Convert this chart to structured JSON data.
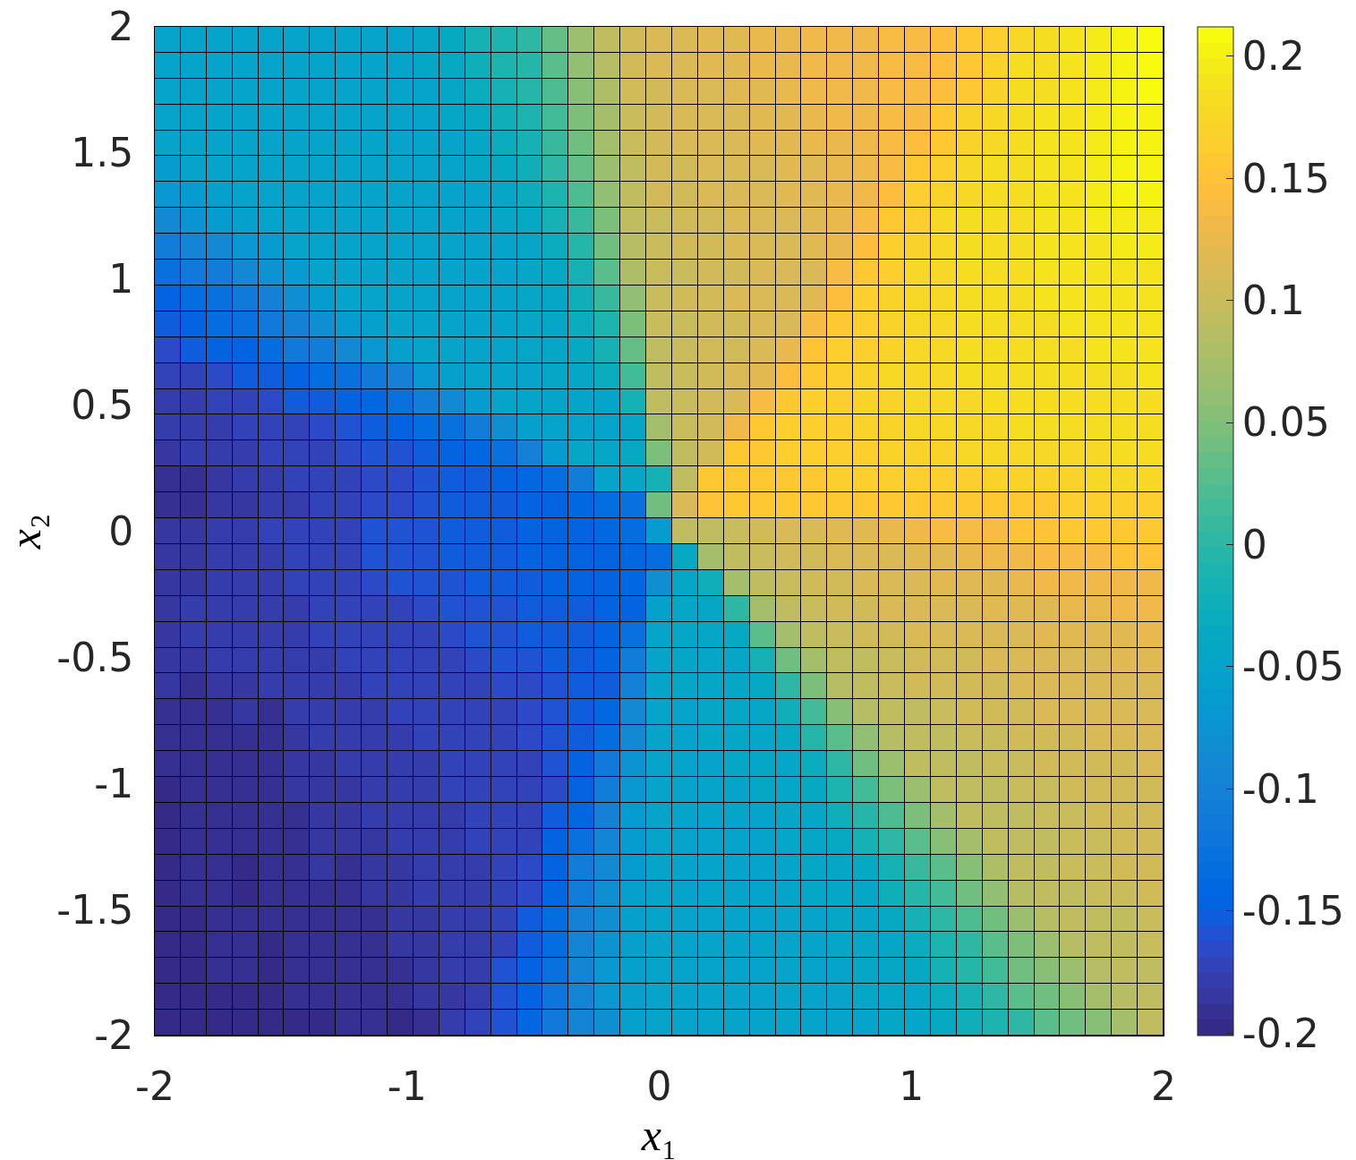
{
  "chart_data": {
    "type": "heatmap",
    "xlabel": "x₁",
    "ylabel": "x₂",
    "xlim": [
      -2,
      2
    ],
    "ylim": [
      -2,
      2
    ],
    "xticks": [
      -2,
      -1,
      0,
      1,
      2
    ],
    "yticks": [
      -2,
      -1.5,
      -1,
      -0.5,
      0,
      0.5,
      1,
      1.5,
      2
    ],
    "clim": [
      -0.201,
      0.212
    ],
    "cticks": [
      -0.2,
      -0.15,
      -0.1,
      -0.05,
      0,
      0.05,
      0.1,
      0.15,
      0.2
    ],
    "cells": [
      [
        -0.05,
        -0.05,
        -0.05,
        -0.05,
        -0.05,
        -0.05,
        -0.05,
        -0.05,
        -0.05,
        -0.05,
        -0.045,
        -0.035,
        -0.015,
        -0.01,
        0.005,
        0.035,
        0.065,
        0.09,
        0.105,
        0.11,
        0.115,
        0.12,
        0.12,
        0.125,
        0.125,
        0.13,
        0.13,
        0.13,
        0.135,
        0.14,
        0.145,
        0.16,
        0.165,
        0.175,
        0.185,
        0.19,
        0.195,
        0.2,
        0.21
      ],
      [
        -0.05,
        -0.05,
        -0.05,
        -0.05,
        -0.05,
        -0.05,
        -0.05,
        -0.05,
        -0.05,
        -0.05,
        -0.045,
        -0.035,
        -0.025,
        -0.01,
        -0.005,
        0.03,
        0.06,
        0.085,
        0.105,
        0.11,
        0.115,
        0.12,
        0.12,
        0.125,
        0.125,
        0.13,
        0.13,
        0.13,
        0.135,
        0.14,
        0.145,
        0.16,
        0.17,
        0.18,
        0.185,
        0.19,
        0.195,
        0.2,
        0.21
      ],
      [
        -0.05,
        -0.05,
        -0.05,
        -0.05,
        -0.05,
        -0.05,
        -0.05,
        -0.05,
        -0.05,
        -0.05,
        -0.05,
        -0.045,
        -0.03,
        -0.015,
        -0.005,
        0.02,
        0.055,
        0.08,
        0.105,
        0.105,
        0.11,
        0.115,
        0.12,
        0.12,
        0.125,
        0.13,
        0.13,
        0.13,
        0.135,
        0.14,
        0.145,
        0.16,
        0.17,
        0.18,
        0.185,
        0.19,
        0.195,
        0.2,
        0.21
      ],
      [
        -0.05,
        -0.05,
        -0.05,
        -0.05,
        -0.05,
        -0.05,
        -0.05,
        -0.05,
        -0.05,
        -0.05,
        -0.05,
        -0.045,
        -0.035,
        -0.025,
        -0.01,
        0.015,
        0.05,
        0.075,
        0.1,
        0.105,
        0.11,
        0.11,
        0.115,
        0.12,
        0.12,
        0.125,
        0.13,
        0.13,
        0.135,
        0.14,
        0.16,
        0.17,
        0.175,
        0.185,
        0.19,
        0.19,
        0.195,
        0.2,
        0.205
      ],
      [
        -0.05,
        -0.05,
        -0.05,
        -0.05,
        -0.05,
        -0.05,
        -0.05,
        -0.05,
        -0.05,
        -0.05,
        -0.05,
        -0.05,
        -0.045,
        -0.03,
        -0.015,
        0.01,
        0.04,
        0.075,
        0.1,
        0.105,
        0.11,
        0.11,
        0.115,
        0.12,
        0.12,
        0.125,
        0.125,
        0.13,
        0.135,
        0.145,
        0.16,
        0.17,
        0.175,
        0.185,
        0.19,
        0.19,
        0.195,
        0.205,
        0.2
      ],
      [
        -0.06,
        -0.05,
        -0.05,
        -0.05,
        -0.05,
        -0.05,
        -0.05,
        -0.05,
        -0.05,
        -0.05,
        -0.05,
        -0.05,
        -0.045,
        -0.035,
        -0.025,
        0.005,
        0.035,
        0.065,
        0.095,
        0.105,
        0.105,
        0.11,
        0.11,
        0.115,
        0.12,
        0.12,
        0.125,
        0.13,
        0.14,
        0.155,
        0.165,
        0.175,
        0.18,
        0.185,
        0.19,
        0.19,
        0.195,
        0.2,
        0.2
      ],
      [
        -0.07,
        -0.06,
        -0.055,
        -0.05,
        -0.05,
        -0.05,
        -0.05,
        -0.05,
        -0.05,
        -0.05,
        -0.05,
        -0.05,
        -0.05,
        -0.045,
        -0.03,
        -0.01,
        0.02,
        0.06,
        0.095,
        0.105,
        0.105,
        0.11,
        0.11,
        0.115,
        0.12,
        0.12,
        0.125,
        0.13,
        0.145,
        0.165,
        0.17,
        0.175,
        0.185,
        0.185,
        0.19,
        0.19,
        0.195,
        0.2,
        0.2
      ],
      [
        -0.09,
        -0.075,
        -0.06,
        -0.055,
        -0.05,
        -0.05,
        -0.05,
        -0.05,
        -0.05,
        -0.05,
        -0.05,
        -0.05,
        -0.05,
        -0.045,
        -0.035,
        -0.015,
        0.01,
        0.05,
        0.095,
        0.1,
        0.105,
        0.105,
        0.11,
        0.11,
        0.115,
        0.12,
        0.125,
        0.14,
        0.16,
        0.165,
        0.175,
        0.18,
        0.185,
        0.185,
        0.19,
        0.19,
        0.195,
        0.195,
        0.195
      ],
      [
        -0.105,
        -0.095,
        -0.09,
        -0.07,
        -0.06,
        -0.05,
        -0.05,
        -0.05,
        -0.05,
        -0.05,
        -0.05,
        -0.05,
        -0.05,
        -0.05,
        -0.045,
        -0.03,
        -0.005,
        0.04,
        0.085,
        0.1,
        0.105,
        0.105,
        0.11,
        0.11,
        0.115,
        0.12,
        0.125,
        0.145,
        0.165,
        0.17,
        0.175,
        0.18,
        0.185,
        0.185,
        0.19,
        0.19,
        0.19,
        0.195,
        0.195
      ],
      [
        -0.125,
        -0.115,
        -0.105,
        -0.09,
        -0.075,
        -0.06,
        -0.05,
        -0.05,
        -0.05,
        -0.05,
        -0.05,
        -0.05,
        -0.05,
        -0.05,
        -0.045,
        -0.035,
        -0.015,
        0.03,
        0.08,
        0.1,
        0.1,
        0.105,
        0.105,
        0.11,
        0.11,
        0.115,
        0.135,
        0.155,
        0.165,
        0.175,
        0.175,
        0.18,
        0.185,
        0.185,
        0.19,
        0.19,
        0.19,
        0.19,
        0.19
      ],
      [
        -0.145,
        -0.135,
        -0.125,
        -0.115,
        -0.1,
        -0.08,
        -0.06,
        -0.05,
        -0.05,
        -0.05,
        -0.05,
        -0.05,
        -0.05,
        -0.05,
        -0.045,
        -0.045,
        -0.025,
        0.01,
        0.06,
        0.1,
        0.105,
        0.105,
        0.11,
        0.11,
        0.115,
        0.12,
        0.145,
        0.165,
        0.17,
        0.175,
        0.175,
        0.18,
        0.185,
        0.185,
        0.19,
        0.19,
        0.19,
        0.19,
        0.19
      ],
      [
        -0.155,
        -0.145,
        -0.135,
        -0.125,
        -0.115,
        -0.1,
        -0.08,
        -0.065,
        -0.055,
        -0.05,
        -0.05,
        -0.05,
        -0.05,
        -0.05,
        -0.045,
        -0.045,
        -0.03,
        -0.01,
        0.05,
        0.1,
        0.1,
        0.105,
        0.105,
        0.11,
        0.11,
        0.135,
        0.16,
        0.165,
        0.17,
        0.175,
        0.175,
        0.18,
        0.185,
        0.185,
        0.185,
        0.19,
        0.19,
        0.19,
        0.19
      ],
      [
        -0.165,
        -0.155,
        -0.145,
        -0.145,
        -0.135,
        -0.115,
        -0.105,
        -0.09,
        -0.07,
        -0.055,
        -0.05,
        -0.05,
        -0.05,
        -0.05,
        -0.045,
        -0.045,
        -0.035,
        -0.015,
        0.035,
        0.095,
        0.1,
        0.105,
        0.105,
        0.11,
        0.125,
        0.15,
        0.165,
        0.165,
        0.17,
        0.175,
        0.175,
        0.18,
        0.185,
        0.185,
        0.185,
        0.185,
        0.19,
        0.19,
        0.19
      ],
      [
        -0.17,
        -0.17,
        -0.165,
        -0.155,
        -0.15,
        -0.145,
        -0.135,
        -0.125,
        -0.115,
        -0.1,
        -0.07,
        -0.055,
        -0.05,
        -0.05,
        -0.05,
        -0.045,
        -0.045,
        -0.03,
        0.015,
        0.095,
        0.1,
        0.105,
        0.11,
        0.12,
        0.145,
        0.16,
        0.165,
        0.17,
        0.175,
        0.175,
        0.175,
        0.18,
        0.18,
        0.185,
        0.185,
        0.185,
        0.185,
        0.185,
        0.19
      ],
      [
        -0.18,
        -0.18,
        -0.17,
        -0.17,
        -0.165,
        -0.155,
        -0.15,
        -0.145,
        -0.14,
        -0.125,
        -0.105,
        -0.09,
        -0.06,
        -0.05,
        -0.05,
        -0.05,
        -0.05,
        -0.05,
        -0.015,
        0.09,
        0.1,
        0.105,
        0.11,
        0.14,
        0.16,
        0.165,
        0.165,
        0.17,
        0.17,
        0.175,
        0.175,
        0.175,
        0.18,
        0.18,
        0.185,
        0.185,
        0.185,
        0.185,
        0.185
      ],
      [
        -0.18,
        -0.18,
        -0.18,
        -0.175,
        -0.17,
        -0.17,
        -0.165,
        -0.16,
        -0.15,
        -0.145,
        -0.135,
        -0.125,
        -0.105,
        -0.08,
        -0.055,
        -0.05,
        -0.05,
        -0.05,
        -0.04,
        0.075,
        0.1,
        0.105,
        0.13,
        0.16,
        0.165,
        0.165,
        0.165,
        0.17,
        0.17,
        0.175,
        0.175,
        0.175,
        0.175,
        0.18,
        0.18,
        0.18,
        0.185,
        0.185,
        0.185
      ],
      [
        -0.185,
        -0.18,
        -0.18,
        -0.18,
        -0.175,
        -0.17,
        -0.17,
        -0.165,
        -0.16,
        -0.16,
        -0.15,
        -0.145,
        -0.14,
        -0.125,
        -0.1,
        -0.06,
        -0.045,
        -0.045,
        -0.035,
        0.045,
        0.095,
        0.105,
        0.16,
        0.16,
        0.165,
        0.165,
        0.165,
        0.165,
        0.17,
        0.17,
        0.17,
        0.175,
        0.175,
        0.175,
        0.175,
        0.175,
        0.175,
        0.18,
        0.18
      ],
      [
        -0.19,
        -0.19,
        -0.185,
        -0.18,
        -0.18,
        -0.175,
        -0.17,
        -0.17,
        -0.165,
        -0.165,
        -0.16,
        -0.155,
        -0.15,
        -0.145,
        -0.14,
        -0.135,
        -0.105,
        -0.05,
        -0.04,
        -0.015,
        0.09,
        0.155,
        0.16,
        0.16,
        0.16,
        0.16,
        0.165,
        0.165,
        0.165,
        0.165,
        0.165,
        0.165,
        0.17,
        0.17,
        0.17,
        0.17,
        0.175,
        0.175,
        0.175
      ],
      [
        -0.19,
        -0.19,
        -0.185,
        -0.185,
        -0.18,
        -0.18,
        -0.175,
        -0.17,
        -0.165,
        -0.165,
        -0.16,
        -0.155,
        -0.15,
        -0.15,
        -0.145,
        -0.145,
        -0.14,
        -0.135,
        -0.125,
        0.04,
        0.115,
        0.15,
        0.155,
        0.16,
        0.16,
        0.16,
        0.16,
        0.16,
        0.16,
        0.16,
        0.16,
        0.16,
        0.16,
        0.16,
        0.16,
        0.165,
        0.165,
        0.165,
        0.165
      ],
      [
        -0.185,
        -0.185,
        -0.18,
        -0.18,
        -0.175,
        -0.17,
        -0.17,
        -0.17,
        -0.16,
        -0.16,
        -0.16,
        -0.15,
        -0.15,
        -0.15,
        -0.145,
        -0.145,
        -0.145,
        -0.14,
        -0.135,
        -0.06,
        0.095,
        0.095,
        0.1,
        0.105,
        0.11,
        0.11,
        0.12,
        0.12,
        0.125,
        0.13,
        0.135,
        0.14,
        0.14,
        0.15,
        0.15,
        0.155,
        0.16,
        0.16,
        0.16
      ],
      [
        -0.185,
        -0.185,
        -0.18,
        -0.18,
        -0.18,
        -0.175,
        -0.17,
        -0.17,
        -0.16,
        -0.16,
        -0.16,
        -0.155,
        -0.15,
        -0.15,
        -0.145,
        -0.145,
        -0.145,
        -0.145,
        -0.14,
        -0.135,
        -0.035,
        0.075,
        0.095,
        0.1,
        0.105,
        0.105,
        0.11,
        0.11,
        0.115,
        0.12,
        0.12,
        0.125,
        0.13,
        0.13,
        0.135,
        0.14,
        0.14,
        0.15,
        0.15
      ],
      [
        -0.185,
        -0.185,
        -0.18,
        -0.18,
        -0.18,
        -0.175,
        -0.17,
        -0.17,
        -0.165,
        -0.16,
        -0.16,
        -0.16,
        -0.155,
        -0.15,
        -0.15,
        -0.145,
        -0.145,
        -0.145,
        -0.14,
        -0.08,
        -0.045,
        -0.025,
        0.075,
        0.095,
        0.1,
        0.105,
        0.105,
        0.11,
        0.11,
        0.115,
        0.12,
        0.12,
        0.12,
        0.125,
        0.13,
        0.13,
        0.13,
        0.13,
        0.13
      ],
      [
        -0.185,
        -0.18,
        -0.18,
        -0.18,
        -0.18,
        -0.18,
        -0.175,
        -0.17,
        -0.17,
        -0.17,
        -0.165,
        -0.16,
        -0.16,
        -0.16,
        -0.15,
        -0.15,
        -0.15,
        -0.145,
        -0.145,
        -0.055,
        -0.045,
        -0.04,
        0,
        0.075,
        0.095,
        0.1,
        0.105,
        0.105,
        0.11,
        0.11,
        0.11,
        0.115,
        0.12,
        0.12,
        0.12,
        0.125,
        0.125,
        0.13,
        0.13
      ],
      [
        -0.185,
        -0.18,
        -0.18,
        -0.18,
        -0.18,
        -0.18,
        -0.175,
        -0.175,
        -0.17,
        -0.17,
        -0.17,
        -0.165,
        -0.16,
        -0.16,
        -0.155,
        -0.155,
        -0.15,
        -0.145,
        -0.13,
        -0.05,
        -0.045,
        -0.045,
        -0.035,
        0.025,
        0.075,
        0.095,
        0.1,
        0.105,
        0.105,
        0.11,
        0.11,
        0.11,
        0.115,
        0.115,
        0.12,
        0.12,
        0.12,
        0.12,
        0.125
      ],
      [
        -0.185,
        -0.185,
        -0.18,
        -0.18,
        -0.18,
        -0.18,
        -0.18,
        -0.175,
        -0.175,
        -0.17,
        -0.17,
        -0.17,
        -0.165,
        -0.16,
        -0.16,
        -0.155,
        -0.15,
        -0.145,
        -0.11,
        -0.05,
        -0.045,
        -0.045,
        -0.04,
        -0.015,
        0.04,
        0.075,
        0.095,
        0.095,
        0.1,
        0.105,
        0.105,
        0.105,
        0.11,
        0.11,
        0.11,
        0.115,
        0.115,
        0.12,
        0.12
      ],
      [
        -0.185,
        -0.19,
        -0.185,
        -0.185,
        -0.18,
        -0.18,
        -0.18,
        -0.18,
        -0.175,
        -0.175,
        -0.17,
        -0.17,
        -0.17,
        -0.165,
        -0.165,
        -0.16,
        -0.155,
        -0.15,
        -0.1,
        -0.05,
        -0.045,
        -0.045,
        -0.045,
        -0.035,
        0,
        0.05,
        0.085,
        0.095,
        0.1,
        0.105,
        0.105,
        0.105,
        0.105,
        0.11,
        0.11,
        0.11,
        0.115,
        0.115,
        0.115
      ],
      [
        -0.19,
        -0.19,
        -0.19,
        -0.185,
        -0.19,
        -0.18,
        -0.18,
        -0.18,
        -0.18,
        -0.175,
        -0.175,
        -0.17,
        -0.17,
        -0.17,
        -0.165,
        -0.16,
        -0.155,
        -0.14,
        -0.09,
        -0.05,
        -0.05,
        -0.045,
        -0.045,
        -0.04,
        -0.025,
        0.015,
        0.055,
        0.085,
        0.095,
        0.095,
        0.1,
        0.105,
        0.105,
        0.105,
        0.11,
        0.11,
        0.11,
        0.11,
        0.11
      ],
      [
        -0.19,
        -0.19,
        -0.19,
        -0.19,
        -0.19,
        -0.185,
        -0.18,
        -0.18,
        -0.18,
        -0.18,
        -0.175,
        -0.175,
        -0.17,
        -0.17,
        -0.165,
        -0.16,
        -0.155,
        -0.135,
        -0.085,
        -0.05,
        -0.05,
        -0.045,
        -0.045,
        -0.045,
        -0.035,
        -0.005,
        0.025,
        0.06,
        0.085,
        0.095,
        0.095,
        0.1,
        0.1,
        0.105,
        0.105,
        0.105,
        0.11,
        0.11,
        0.11
      ],
      [
        -0.19,
        -0.19,
        -0.19,
        -0.19,
        -0.19,
        -0.185,
        -0.185,
        -0.18,
        -0.18,
        -0.18,
        -0.18,
        -0.175,
        -0.17,
        -0.17,
        -0.17,
        -0.16,
        -0.145,
        -0.115,
        -0.075,
        -0.05,
        -0.05,
        -0.05,
        -0.045,
        -0.045,
        -0.04,
        -0.03,
        0,
        0.04,
        0.065,
        0.09,
        0.095,
        0.095,
        0.1,
        0.1,
        0.105,
        0.105,
        0.105,
        0.105,
        0.11
      ],
      [
        -0.195,
        -0.19,
        -0.19,
        -0.19,
        -0.19,
        -0.185,
        -0.185,
        -0.185,
        -0.18,
        -0.18,
        -0.18,
        -0.175,
        -0.175,
        -0.17,
        -0.17,
        -0.165,
        -0.145,
        -0.105,
        -0.07,
        -0.05,
        -0.05,
        -0.05,
        -0.05,
        -0.045,
        -0.045,
        -0.035,
        -0.01,
        0.015,
        0.045,
        0.07,
        0.09,
        0.095,
        0.095,
        0.1,
        0.1,
        0.105,
        0.105,
        0.105,
        0.105
      ],
      [
        -0.195,
        -0.19,
        -0.19,
        -0.19,
        -0.19,
        -0.19,
        -0.185,
        -0.185,
        -0.18,
        -0.18,
        -0.18,
        -0.18,
        -0.175,
        -0.17,
        -0.17,
        -0.15,
        -0.14,
        -0.1,
        -0.06,
        -0.05,
        -0.05,
        -0.05,
        -0.05,
        -0.05,
        -0.045,
        -0.04,
        -0.025,
        -0.005,
        0.02,
        0.05,
        0.075,
        0.09,
        0.095,
        0.095,
        0.1,
        0.1,
        0.105,
        0.105,
        0.105
      ],
      [
        -0.195,
        -0.19,
        -0.19,
        -0.19,
        -0.19,
        -0.19,
        -0.185,
        -0.185,
        -0.185,
        -0.18,
        -0.18,
        -0.18,
        -0.175,
        -0.17,
        -0.17,
        -0.145,
        -0.125,
        -0.095,
        -0.06,
        -0.05,
        -0.05,
        -0.05,
        -0.05,
        -0.05,
        -0.045,
        -0.045,
        -0.035,
        -0.015,
        0,
        0.025,
        0.055,
        0.075,
        0.09,
        0.095,
        0.095,
        0.1,
        0.1,
        0.105,
        0.105
      ],
      [
        -0.195,
        -0.19,
        -0.19,
        -0.195,
        -0.19,
        -0.19,
        -0.185,
        -0.19,
        -0.185,
        -0.185,
        -0.18,
        -0.18,
        -0.18,
        -0.175,
        -0.165,
        -0.145,
        -0.105,
        -0.09,
        -0.06,
        -0.05,
        -0.05,
        -0.05,
        -0.05,
        -0.05,
        -0.05,
        -0.045,
        -0.045,
        -0.035,
        -0.015,
        0.01,
        0.03,
        0.055,
        0.08,
        0.095,
        0.095,
        0.1,
        0.1,
        0.105,
        0.105
      ],
      [
        -0.195,
        -0.19,
        -0.19,
        -0.195,
        -0.19,
        -0.19,
        -0.19,
        -0.19,
        -0.185,
        -0.185,
        -0.18,
        -0.18,
        -0.18,
        -0.175,
        -0.165,
        -0.14,
        -0.105,
        -0.08,
        -0.055,
        -0.05,
        -0.05,
        -0.05,
        -0.05,
        -0.05,
        -0.05,
        -0.045,
        -0.045,
        -0.04,
        -0.025,
        -0.005,
        0.015,
        0.04,
        0.06,
        0.085,
        0.095,
        0.095,
        0.1,
        0.1,
        0.105
      ],
      [
        -0.195,
        -0.2,
        -0.19,
        -0.19,
        -0.19,
        -0.19,
        -0.19,
        -0.19,
        -0.19,
        -0.185,
        -0.185,
        -0.18,
        -0.18,
        -0.175,
        -0.155,
        -0.135,
        -0.1,
        -0.08,
        -0.055,
        -0.05,
        -0.05,
        -0.05,
        -0.05,
        -0.05,
        -0.05,
        -0.05,
        -0.045,
        -0.045,
        -0.035,
        -0.015,
        0,
        0.02,
        0.04,
        0.065,
        0.085,
        0.09,
        0.095,
        0.095,
        0.1
      ],
      [
        -0.195,
        -0.2,
        -0.19,
        -0.19,
        -0.195,
        -0.19,
        -0.19,
        -0.19,
        -0.19,
        -0.185,
        -0.185,
        -0.18,
        -0.18,
        -0.175,
        -0.15,
        -0.135,
        -0.095,
        -0.075,
        -0.055,
        -0.05,
        -0.05,
        -0.05,
        -0.05,
        -0.05,
        -0.05,
        -0.05,
        -0.045,
        -0.045,
        -0.04,
        -0.03,
        -0.01,
        0.005,
        0.03,
        0.05,
        0.065,
        0.085,
        0.095,
        0.095,
        0.1
      ],
      [
        -0.195,
        -0.2,
        -0.19,
        -0.19,
        -0.195,
        -0.19,
        -0.19,
        -0.19,
        -0.19,
        -0.19,
        -0.185,
        -0.18,
        -0.18,
        -0.16,
        -0.145,
        -0.125,
        -0.095,
        -0.07,
        -0.055,
        -0.05,
        -0.05,
        -0.05,
        -0.05,
        -0.05,
        -0.05,
        -0.05,
        -0.05,
        -0.045,
        -0.045,
        -0.035,
        -0.02,
        -0.005,
        0.015,
        0.04,
        0.055,
        0.07,
        0.085,
        0.095,
        0.095
      ],
      [
        -0.195,
        -0.2,
        -0.2,
        -0.195,
        -0.195,
        -0.19,
        -0.19,
        -0.19,
        -0.19,
        -0.19,
        -0.185,
        -0.185,
        -0.18,
        -0.16,
        -0.145,
        -0.12,
        -0.095,
        -0.07,
        -0.055,
        -0.05,
        -0.05,
        -0.05,
        -0.05,
        -0.05,
        -0.05,
        -0.05,
        -0.05,
        -0.045,
        -0.045,
        -0.04,
        -0.03,
        -0.015,
        0.005,
        0.025,
        0.04,
        0.055,
        0.075,
        0.085,
        0.095
      ],
      [
        -0.195,
        -0.2,
        -0.2,
        -0.195,
        -0.195,
        -0.195,
        -0.195,
        -0.19,
        -0.19,
        -0.195,
        -0.19,
        -0.18,
        -0.17,
        -0.16,
        -0.14,
        -0.115,
        -0.095,
        -0.08,
        -0.055,
        -0.05,
        -0.05,
        -0.05,
        -0.05,
        -0.05,
        -0.05,
        -0.05,
        -0.05,
        -0.05,
        -0.045,
        -0.045,
        -0.035,
        -0.025,
        -0.01,
        0.005,
        0.025,
        0.04,
        0.055,
        0.075,
        0.09
      ]
    ]
  }
}
